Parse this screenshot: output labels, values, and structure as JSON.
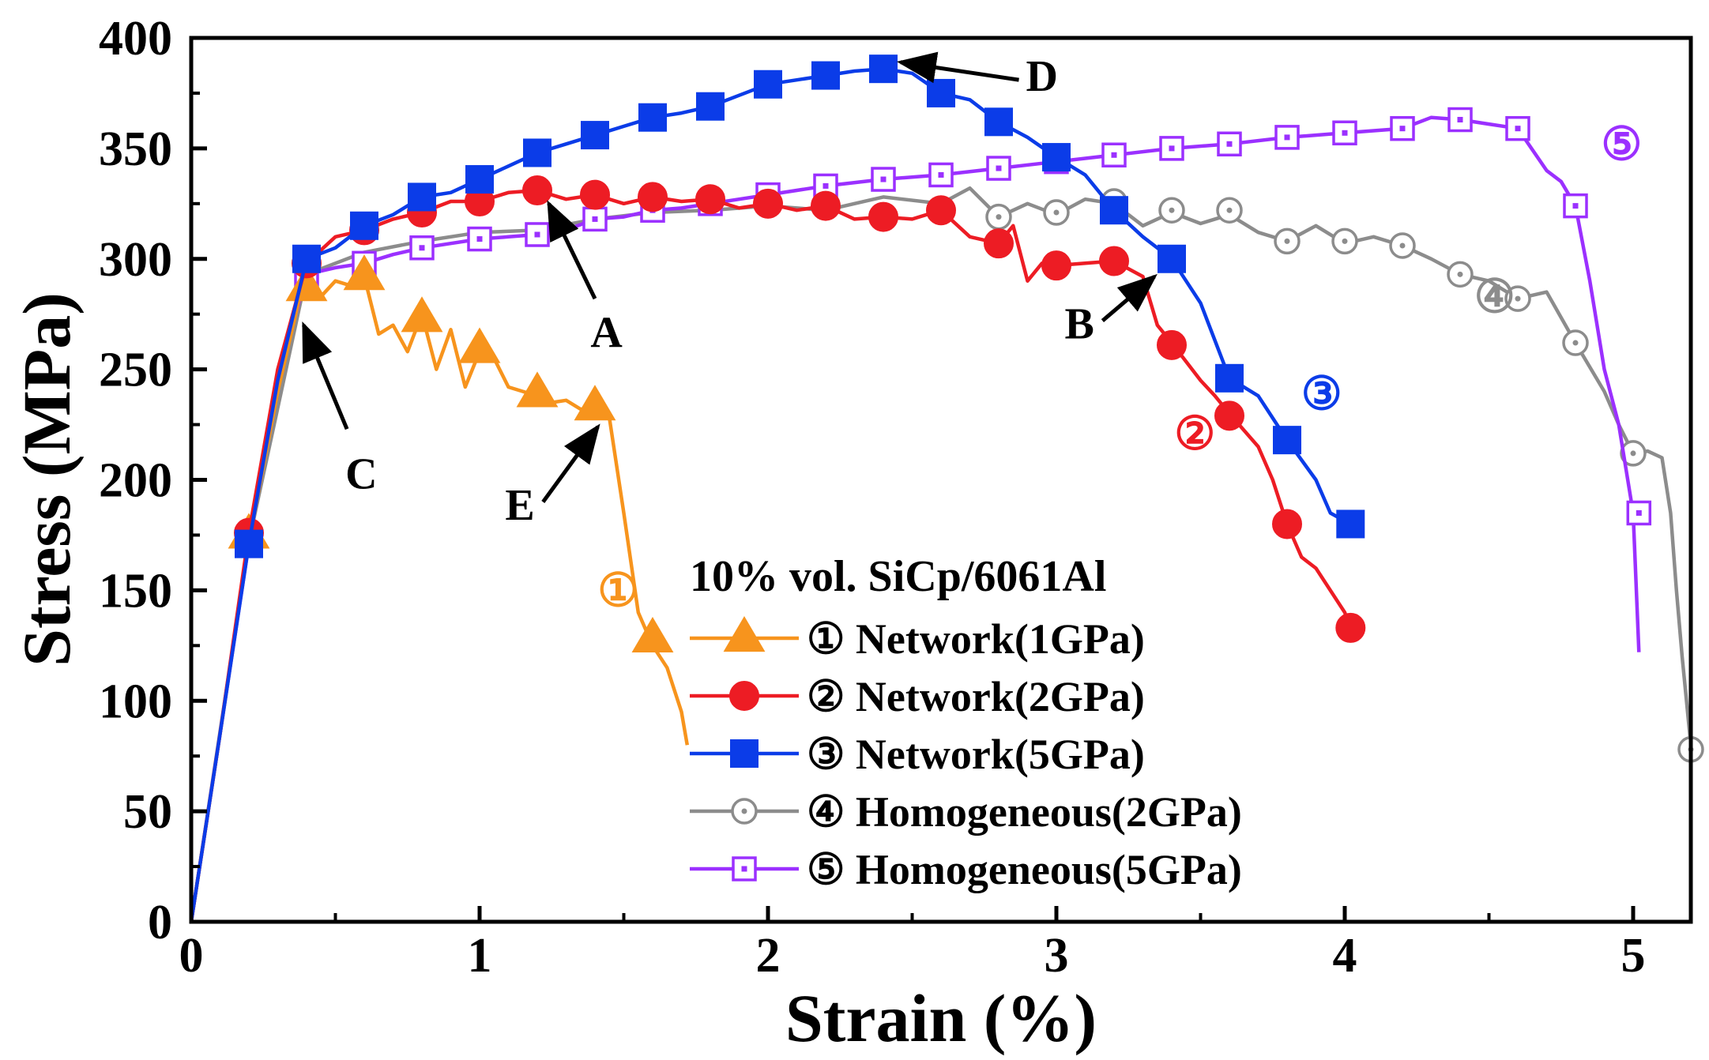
{
  "chart_data": {
    "type": "line",
    "title": "",
    "xlabel": "Strain (%)",
    "ylabel": "Stress (MPa)",
    "xlim": [
      0,
      5.2
    ],
    "ylim": [
      0,
      400
    ],
    "xticks": [
      0,
      1,
      2,
      3,
      4,
      5
    ],
    "yticks": [
      0,
      50,
      100,
      150,
      200,
      250,
      300,
      350,
      400
    ],
    "grid": false,
    "legend": {
      "title": "10% vol. SiCp/6061Al",
      "placement": "lower-center"
    },
    "series": [
      {
        "name": "① Network(1GPa)",
        "tag": "①",
        "color": "#F7941D",
        "marker": "triangle",
        "filled": true,
        "x": [
          0,
          0.1,
          0.2,
          0.3,
          0.38,
          0.45,
          0.5,
          0.55,
          0.6,
          0.65,
          0.7,
          0.75,
          0.8,
          0.85,
          0.9,
          0.95,
          1.0,
          1.05,
          1.1,
          1.15,
          1.2,
          1.25,
          1.3,
          1.35,
          1.4,
          1.43,
          1.45,
          1.5,
          1.55,
          1.6,
          1.65,
          1.7,
          1.72
        ],
        "y": [
          0,
          85,
          172,
          240,
          285,
          283,
          290,
          288,
          292,
          266,
          270,
          258,
          275,
          250,
          268,
          242,
          258,
          255,
          242,
          240,
          238,
          235,
          236,
          232,
          232,
          233,
          228,
          185,
          140,
          125,
          115,
          95,
          80
        ],
        "mx": [
          0.2,
          0.4,
          0.6,
          0.8,
          1.0,
          1.2,
          1.4,
          1.6
        ],
        "my": [
          175,
          287,
          292,
          273,
          259,
          239,
          233,
          128
        ],
        "label_pos": [
          1.48,
          143
        ]
      },
      {
        "name": "② Network(2GPa)",
        "tag": "②",
        "color": "#ED1C24",
        "marker": "circle",
        "filled": true,
        "x": [
          0,
          0.1,
          0.2,
          0.3,
          0.4,
          0.5,
          0.6,
          0.7,
          0.8,
          0.9,
          1.0,
          1.1,
          1.2,
          1.3,
          1.4,
          1.5,
          1.6,
          1.7,
          1.8,
          1.9,
          2.0,
          2.1,
          2.2,
          2.3,
          2.4,
          2.5,
          2.6,
          2.7,
          2.8,
          2.85,
          2.9,
          2.95,
          3.0,
          3.1,
          3.2,
          3.3,
          3.35,
          3.4,
          3.5,
          3.55,
          3.6,
          3.7,
          3.75,
          3.8,
          3.85,
          3.9,
          4.0,
          4.02
        ],
        "y": [
          0,
          85,
          176,
          250,
          298,
          310,
          313,
          318,
          321,
          326,
          326,
          330,
          331,
          327,
          329,
          325,
          328,
          326,
          327,
          323,
          325,
          322,
          324,
          318,
          319,
          318,
          322,
          310,
          307,
          315,
          290,
          298,
          297,
          298,
          299,
          292,
          270,
          262,
          245,
          238,
          230,
          215,
          200,
          180,
          165,
          160,
          140,
          133
        ],
        "mx": [
          0.2,
          0.4,
          0.6,
          0.8,
          1.0,
          1.2,
          1.4,
          1.6,
          1.8,
          2.0,
          2.2,
          2.4,
          2.6,
          2.8,
          3.0,
          3.2,
          3.4,
          3.6,
          3.8,
          4.02
        ],
        "my": [
          176,
          298,
          313,
          321,
          326,
          331,
          329,
          328,
          327,
          325,
          324,
          319,
          322,
          307,
          297,
          299,
          261,
          229,
          180,
          133
        ],
        "label_pos": [
          3.48,
          214
        ]
      },
      {
        "name": "③ Network(5GPa)",
        "tag": "③",
        "color": "#0B3CE8",
        "marker": "square",
        "filled": true,
        "x": [
          0,
          0.1,
          0.2,
          0.3,
          0.4,
          0.5,
          0.6,
          0.7,
          0.8,
          0.9,
          1.0,
          1.1,
          1.2,
          1.3,
          1.4,
          1.5,
          1.6,
          1.7,
          1.8,
          1.9,
          2.0,
          2.1,
          2.2,
          2.3,
          2.4,
          2.5,
          2.6,
          2.7,
          2.8,
          2.9,
          3.0,
          3.1,
          3.2,
          3.3,
          3.4,
          3.5,
          3.6,
          3.7,
          3.8,
          3.9,
          3.95,
          4.02
        ],
        "y": [
          0,
          85,
          171,
          245,
          300,
          305,
          315,
          320,
          328,
          330,
          336,
          342,
          348,
          352,
          356,
          360,
          364,
          366,
          369,
          374,
          379,
          381,
          383,
          385,
          386,
          384,
          375,
          372,
          362,
          355,
          346,
          338,
          322,
          310,
          300,
          280,
          246,
          238,
          218,
          200,
          185,
          180
        ],
        "mx": [
          0.2,
          0.4,
          0.6,
          0.8,
          1.0,
          1.2,
          1.4,
          1.6,
          1.8,
          2.0,
          2.2,
          2.4,
          2.6,
          2.8,
          3.0,
          3.2,
          3.4,
          3.6,
          3.8,
          4.02
        ],
        "my": [
          171,
          300,
          315,
          328,
          336,
          348,
          356,
          364,
          369,
          379,
          383,
          386,
          375,
          362,
          346,
          322,
          300,
          246,
          218,
          180
        ],
        "label_pos": [
          3.92,
          232
        ]
      },
      {
        "name": "④ Homogeneous(2GPa)",
        "tag": "④",
        "color": "#8C8C8C",
        "marker": "circle",
        "filled": false,
        "x": [
          0,
          0.2,
          0.4,
          0.6,
          0.8,
          1.0,
          1.2,
          1.4,
          1.6,
          1.8,
          2.0,
          2.2,
          2.4,
          2.6,
          2.7,
          2.8,
          2.9,
          3.0,
          3.1,
          3.2,
          3.3,
          3.4,
          3.5,
          3.6,
          3.7,
          3.8,
          3.9,
          4.0,
          4.1,
          4.2,
          4.3,
          4.4,
          4.5,
          4.6,
          4.7,
          4.8,
          4.9,
          4.95,
          5.0,
          5.05,
          5.1,
          5.13,
          5.15,
          5.17,
          5.2
        ],
        "y": [
          0,
          172,
          293,
          303,
          308,
          312,
          313,
          318,
          321,
          322,
          324,
          322,
          328,
          325,
          332,
          319,
          325,
          320,
          327,
          325,
          315,
          321,
          316,
          320,
          312,
          308,
          315,
          307,
          310,
          306,
          300,
          293,
          290,
          282,
          285,
          262,
          240,
          225,
          212,
          213,
          210,
          185,
          150,
          120,
          80
        ],
        "mx": [
          2.8,
          3.0,
          3.2,
          3.4,
          3.6,
          3.8,
          4.0,
          4.2,
          4.4,
          4.6,
          4.8,
          5.0,
          5.2
        ],
        "my": [
          319,
          321,
          326,
          322,
          322,
          308,
          308,
          306,
          293,
          282,
          262,
          212,
          78
        ],
        "label_pos": [
          4.52,
          276
        ]
      },
      {
        "name": "⑤ Homogeneous(5GPa)",
        "tag": "⑤",
        "color": "#9B30FF",
        "marker": "square",
        "filled": false,
        "x": [
          0,
          0.1,
          0.2,
          0.3,
          0.4,
          0.5,
          0.6,
          0.7,
          0.8,
          0.9,
          1.0,
          1.1,
          1.2,
          1.3,
          1.4,
          1.5,
          1.6,
          1.7,
          1.8,
          1.9,
          2.0,
          2.2,
          2.4,
          2.6,
          2.8,
          3.0,
          3.2,
          3.4,
          3.6,
          3.8,
          4.0,
          4.2,
          4.3,
          4.4,
          4.5,
          4.6,
          4.7,
          4.75,
          4.8,
          4.85,
          4.9,
          4.95,
          5.0,
          5.02
        ],
        "y": [
          0,
          85,
          171,
          245,
          293,
          296,
          298,
          302,
          305,
          307,
          309,
          310,
          311,
          313,
          318,
          319,
          322,
          323,
          325,
          327,
          329,
          333,
          336,
          338,
          341,
          344,
          347,
          350,
          352,
          355,
          357,
          359,
          364,
          363,
          361,
          359,
          340,
          335,
          324,
          290,
          250,
          225,
          185,
          122
        ],
        "mx": [
          0.4,
          0.6,
          0.8,
          1.0,
          1.2,
          1.4,
          1.6,
          1.8,
          2.0,
          2.2,
          2.4,
          2.6,
          2.8,
          3.0,
          3.2,
          3.4,
          3.6,
          3.8,
          4.0,
          4.2,
          4.4,
          4.6,
          4.8,
          5.02
        ],
        "my": [
          293,
          298,
          305,
          309,
          311,
          318,
          322,
          325,
          329,
          333,
          336,
          338,
          341,
          344,
          347,
          350,
          352,
          355,
          357,
          359,
          363,
          359,
          324,
          185
        ],
        "label_pos": [
          4.96,
          345
        ]
      }
    ],
    "annotations": [
      {
        "text": "A",
        "label": [
          1.44,
          260
        ],
        "arrow_from": [
          1.4,
          282
        ],
        "arrow_to": [
          1.24,
          325
        ]
      },
      {
        "text": "B",
        "label": [
          3.08,
          264
        ],
        "arrow_from": [
          3.16,
          272
        ],
        "arrow_to": [
          3.34,
          292
        ]
      },
      {
        "text": "C",
        "label": [
          0.59,
          196
        ],
        "arrow_from": [
          0.54,
          223
        ],
        "arrow_to": [
          0.39,
          270
        ]
      },
      {
        "text": "D",
        "label": [
          2.95,
          376
        ],
        "arrow_from": [
          2.87,
          381
        ],
        "arrow_to": [
          2.46,
          389
        ]
      },
      {
        "text": "E",
        "label": [
          1.14,
          182
        ],
        "arrow_from": [
          1.22,
          190
        ],
        "arrow_to": [
          1.41,
          224
        ]
      }
    ]
  }
}
